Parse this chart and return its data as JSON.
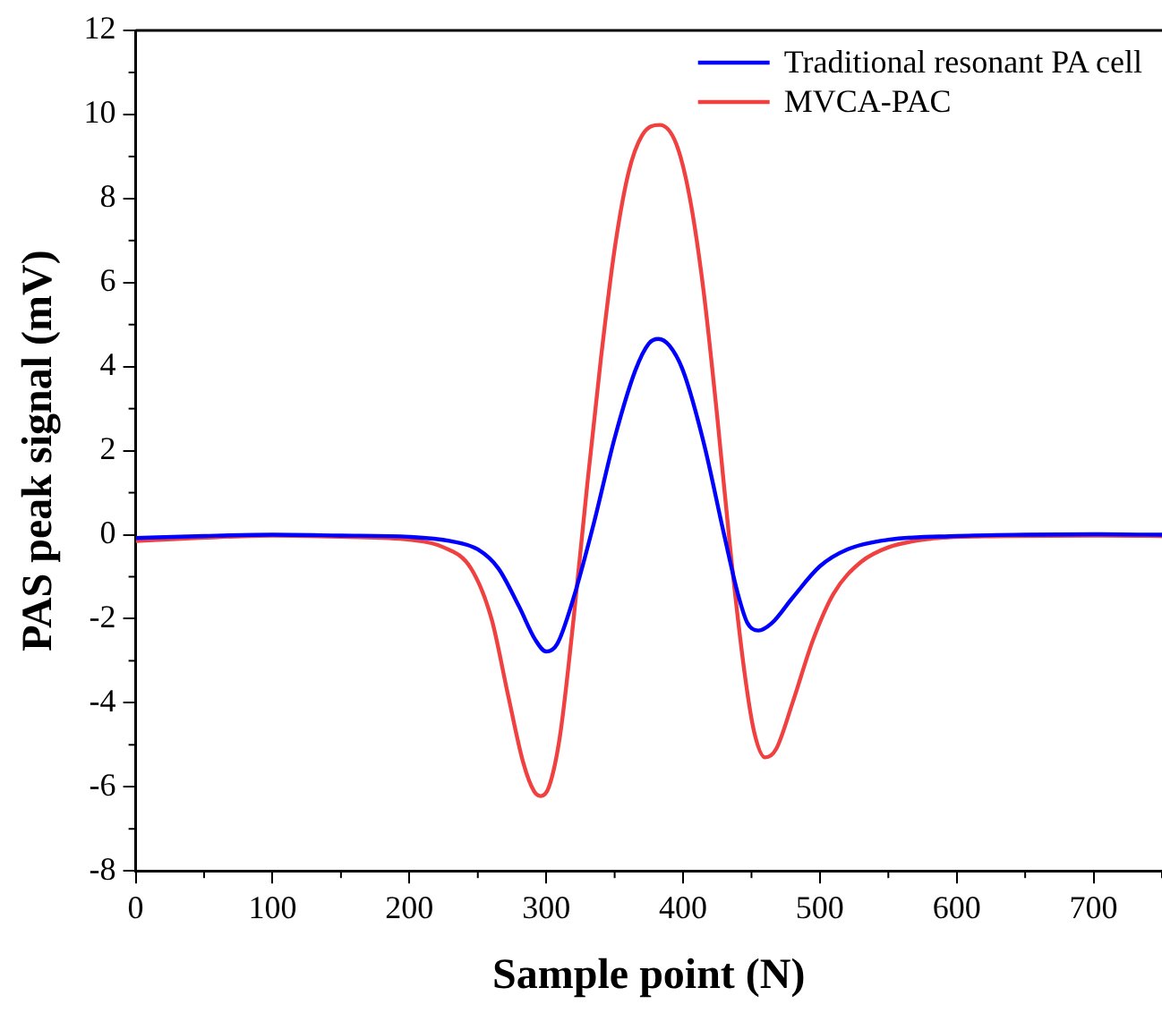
{
  "chart_data": {
    "type": "line",
    "xlabel": "Sample point (N)",
    "ylabel": "PAS peak signal (mV)",
    "xlim": [
      0,
      750
    ],
    "xticks": [
      0,
      100,
      200,
      300,
      400,
      500,
      600,
      700
    ],
    "ylim": [
      -8,
      12
    ],
    "yticks": [
      -8,
      -6,
      -4,
      -2,
      0,
      2,
      4,
      6,
      8,
      10,
      12
    ],
    "grid": false,
    "legend": "top right",
    "marker": "none",
    "line_style": "solid",
    "series": [
      {
        "name": "Traditional resonant PA cell",
        "color": "#0000ff",
        "x": [
          0,
          50,
          100,
          150,
          200,
          230,
          250,
          265,
          280,
          292,
          300,
          308,
          320,
          335,
          350,
          365,
          375,
          382,
          390,
          400,
          415,
          430,
          440,
          447,
          455,
          465,
          480,
          500,
          520,
          550,
          600,
          650,
          700,
          750
        ],
        "values": [
          -0.08,
          -0.03,
          0,
          -0.02,
          -0.05,
          -0.15,
          -0.35,
          -0.8,
          -1.7,
          -2.5,
          -2.78,
          -2.6,
          -1.5,
          0.3,
          2.3,
          3.9,
          4.55,
          4.66,
          4.5,
          3.9,
          2.2,
          0,
          -1.4,
          -2.1,
          -2.28,
          -2.1,
          -1.5,
          -0.75,
          -0.35,
          -0.12,
          -0.03,
          0,
          0.01,
          0
        ]
      },
      {
        "name": "MVCA-PAC",
        "color": "#f04040",
        "x": [
          0,
          50,
          100,
          150,
          200,
          225,
          245,
          260,
          272,
          283,
          291,
          296,
          302,
          310,
          320,
          330,
          340,
          350,
          360,
          370,
          383,
          395,
          405,
          415,
          425,
          435,
          445,
          452,
          460,
          468,
          480,
          495,
          510,
          530,
          550,
          580,
          620,
          700,
          750
        ],
        "values": [
          -0.15,
          -0.07,
          -0.02,
          -0.05,
          -0.12,
          -0.3,
          -0.8,
          -2,
          -3.8,
          -5.4,
          -6.1,
          -6.22,
          -6,
          -4.8,
          -2,
          1.2,
          4.2,
          6.8,
          8.6,
          9.5,
          9.75,
          9.3,
          8,
          5.8,
          2.8,
          -0.5,
          -3.3,
          -4.7,
          -5.3,
          -5.1,
          -4,
          -2.5,
          -1.4,
          -0.65,
          -0.3,
          -0.1,
          -0.04,
          -0.02,
          -0.03
        ]
      }
    ]
  }
}
